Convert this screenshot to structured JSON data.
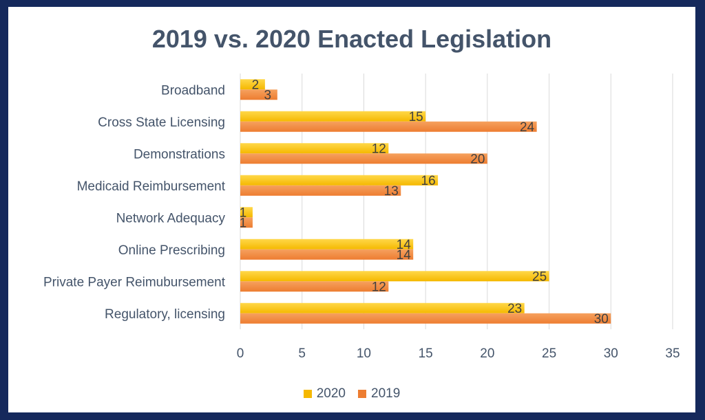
{
  "chart_data": {
    "type": "bar",
    "orientation": "horizontal",
    "title": "2019 vs. 2020 Enacted Legislation",
    "categories": [
      "Broadband",
      "Cross State Licensing",
      "Demonstrations",
      "Medicaid Reimbursement",
      "Network Adequacy",
      "Online Prescribing",
      "Private Payer Reimubursement",
      "Regulatory, licensing"
    ],
    "series": [
      {
        "name": "2020",
        "values": [
          2,
          15,
          12,
          16,
          1,
          14,
          25,
          23
        ],
        "color": "#f5b800"
      },
      {
        "name": "2019",
        "values": [
          3,
          24,
          20,
          13,
          1,
          14,
          12,
          30
        ],
        "color": "#ed7d31"
      }
    ],
    "xlim": [
      0,
      35
    ],
    "xticks": [
      0,
      5,
      10,
      15,
      20,
      25,
      30,
      35
    ],
    "grid": "vertical",
    "legend_position": "bottom",
    "data_labels": true
  },
  "colors": {
    "frame_border": "#15295c",
    "text": "#44546a",
    "grid": "#d9d9d9"
  }
}
